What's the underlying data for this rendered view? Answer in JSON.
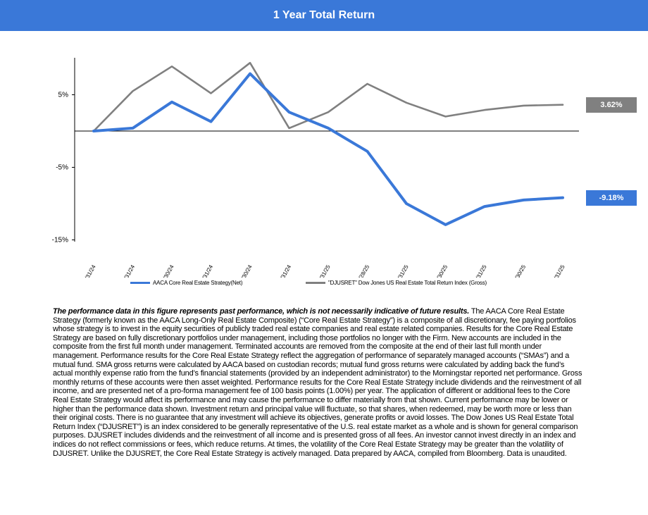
{
  "header": {
    "title": "1 Year Total Return"
  },
  "colors": {
    "header_bg": "#3a78d8",
    "series_net": "#3a78d8",
    "series_index": "#808080",
    "axis": "#000000"
  },
  "chart_data": {
    "type": "line",
    "title": "1 Year Total Return",
    "xlabel": "",
    "ylabel": "",
    "x": [
      "7/31/24",
      "8/31/24",
      "9/30/24",
      "10/31/24",
      "11/30/24",
      "12/31/24",
      "1/31/25",
      "2/28/25",
      "3/31/25",
      "4/30/25",
      "5/31/25",
      "6/30/25",
      "7/31/25"
    ],
    "y_ticks": [
      {
        "value": 5,
        "label": "5%"
      },
      {
        "value": -5,
        "label": "-5%"
      },
      {
        "value": -15,
        "label": "-15%"
      }
    ],
    "ylim": [
      -15,
      10
    ],
    "grid": false,
    "legend_position": "bottom",
    "series": [
      {
        "name": "AACA Core Real Estate Strategy(Net)",
        "values": [
          0,
          0.4,
          4.0,
          1.3,
          7.9,
          2.6,
          0.4,
          -2.8,
          -10.0,
          -12.9,
          -10.4,
          -9.5,
          -9.18
        ],
        "end_label": "-9.18%"
      },
      {
        "name": "\"DJUSRET\" Dow Jones US Real Estate Total Return Index (Gross)",
        "values": [
          0,
          5.5,
          8.9,
          5.2,
          9.4,
          0.4,
          2.6,
          6.5,
          3.9,
          2.0,
          2.9,
          3.5,
          3.62
        ],
        "end_label": "3.62%"
      }
    ]
  },
  "disclaimer": {
    "lead": "The performance data in this figure represents past performance, which is not necessarily indicative of future results.",
    "body": " The AACA  Core Real Estate Strategy (formerly known as the AACA  Long-Only Real Estate Composite) (“Core Real Estate Strategy”) is a composite of all discretionary, fee paying portfolios whose strategy is to invest in the equity securities of publicly traded real estate companies and real estate related companies. Results for the Core Real Estate Strategy are based on fully discretionary portfolios under management, including those portfolios no longer with the Firm. New accounts are included in the composite from the first full month under management. Terminated accounts are removed from the composite at the end of their last full month under management. Performance results for the Core Real Estate Strategy reflect the aggregation of performance of separately managed accounts (“SMAs”) and a mutual fund. SMA  gross returns were calculated by AACA  based on custodian records; mutual fund gross returns were calculated by adding back the fund’s actual monthly expense ratio from the fund’s financial statements (provided by an independent administrator) to the Morningstar reported net performance. Gross monthly returns of these accounts were then asset weighted. Performance results for the Core Real Estate Strategy include dividends and the reinvestment of all income, and are presented net of a pro-forma management fee of 100 basis points (1.00%) per year. The application of different or additional fees to the Core Real Estate Strategy would affect its performance and may cause the performance to differ materially from that  shown. Current performance may be lower or higher than the performance data shown. Investment return and principal value will fluctuate, so that shares, when redeemed, may be worth more or less than their original costs. There is no guarantee that any investment will achieve its objectives, generate profits or avoid losses. The Dow Jones US Real Estate Total Return Index (“DJUSRET”) is an index considered to be generally representative of the U.S. real estate market as a whole and is shown for general comparison purposes. DJUSRET includes dividends and the reinvestment of all income and is presented gross of all fees. An  investor cannot invest directly in an index and indices do not reflect commissions or fees, which reduce returns. At times, the volatility of the Core Real Estate Strategy may be greater than the volatility of DJUSRET. Unlike the DJUSRET, the Core Real Estate Strategy is actively  managed. Data prepared by AACA,    compiled from Bloomberg. Data is unaudited."
  }
}
